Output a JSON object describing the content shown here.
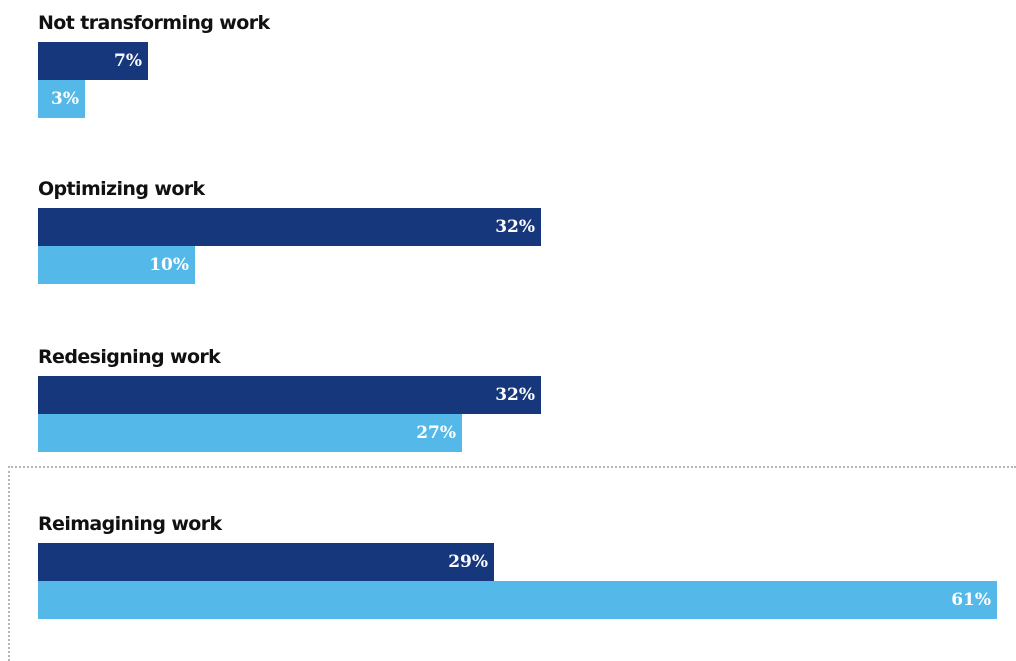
{
  "colors": {
    "series_dark": "#17377d",
    "series_light": "#54b9e8",
    "label_on_bar": "#ffffff",
    "label_outside_bar": "#777777"
  },
  "chart_data": {
    "type": "bar",
    "orientation": "horizontal",
    "categories": [
      "Not transforming work",
      "Optimizing work",
      "Redesigning work",
      "Reimagining work"
    ],
    "series": [
      {
        "color": "#17377d",
        "values": [
          7,
          32,
          32,
          29
        ]
      },
      {
        "color": "#54b9e8",
        "values": [
          3,
          10,
          27,
          61
        ]
      }
    ],
    "data_labels": [
      [
        "7%",
        "3%"
      ],
      [
        "32%",
        "10%"
      ],
      [
        "32%",
        "27%"
      ],
      [
        "29%",
        "61%"
      ]
    ],
    "xlim": [
      0,
      61
    ],
    "unit": "%",
    "grid": false,
    "legend": "none",
    "highlighted_category": "Reimagining work"
  }
}
